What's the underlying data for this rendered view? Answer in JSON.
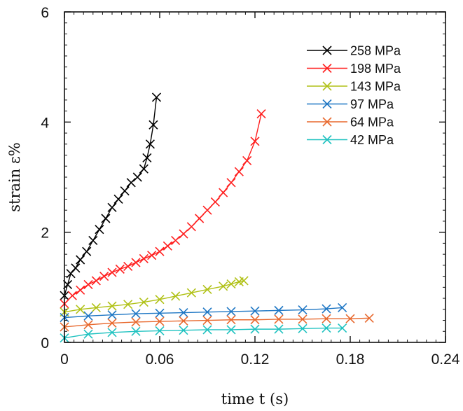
{
  "chart_data": {
    "type": "line",
    "title": "",
    "xlabel": "time t (s)",
    "ylabel": "strain ε%",
    "xlim": [
      0,
      0.24
    ],
    "ylim": [
      0,
      6
    ],
    "xticks": [
      0,
      0.06,
      0.12,
      0.18,
      0.24
    ],
    "xtick_labels": [
      "0",
      "0.06",
      "0.12",
      "0.18",
      "0.24"
    ],
    "yticks": [
      0,
      2,
      4,
      6
    ],
    "ytick_labels": [
      "0",
      "2",
      "4",
      "6"
    ],
    "grid": false,
    "legend": "top-right",
    "marker": "x",
    "series": [
      {
        "name": "258 MPa",
        "color": "#000000",
        "x": [
          0,
          0.002,
          0.004,
          0.007,
          0.01,
          0.014,
          0.018,
          0.022,
          0.026,
          0.03,
          0.034,
          0.038,
          0.042,
          0.046,
          0.05,
          0.052,
          0.054,
          0.056,
          0.058
        ],
        "y": [
          0.85,
          1.05,
          1.25,
          1.35,
          1.5,
          1.65,
          1.85,
          2.05,
          2.25,
          2.45,
          2.6,
          2.75,
          2.9,
          3.0,
          3.15,
          3.35,
          3.6,
          3.95,
          4.45
        ]
      },
      {
        "name": "198 MPa",
        "color": "#ff1f1f",
        "x": [
          0,
          0.005,
          0.01,
          0.015,
          0.02,
          0.025,
          0.03,
          0.035,
          0.04,
          0.045,
          0.05,
          0.055,
          0.06,
          0.065,
          0.07,
          0.075,
          0.08,
          0.085,
          0.09,
          0.095,
          0.1,
          0.105,
          0.11,
          0.115,
          0.12,
          0.124
        ],
        "y": [
          0.7,
          0.85,
          0.95,
          1.05,
          1.12,
          1.2,
          1.27,
          1.33,
          1.38,
          1.45,
          1.52,
          1.58,
          1.65,
          1.75,
          1.85,
          1.97,
          2.1,
          2.25,
          2.4,
          2.55,
          2.72,
          2.9,
          3.1,
          3.3,
          3.65,
          4.15
        ]
      },
      {
        "name": "143 MPa",
        "color": "#b0c116",
        "x": [
          0,
          0.01,
          0.02,
          0.03,
          0.04,
          0.05,
          0.06,
          0.07,
          0.08,
          0.09,
          0.1,
          0.105,
          0.11,
          0.113
        ],
        "y": [
          0.55,
          0.6,
          0.63,
          0.66,
          0.69,
          0.73,
          0.78,
          0.84,
          0.9,
          0.96,
          1.02,
          1.06,
          1.1,
          1.12
        ]
      },
      {
        "name": "97 MPa",
        "color": "#1f77c4",
        "x": [
          0,
          0.015,
          0.03,
          0.045,
          0.06,
          0.075,
          0.09,
          0.105,
          0.12,
          0.135,
          0.15,
          0.165,
          0.175
        ],
        "y": [
          0.45,
          0.48,
          0.5,
          0.52,
          0.53,
          0.54,
          0.55,
          0.56,
          0.57,
          0.58,
          0.59,
          0.61,
          0.63
        ]
      },
      {
        "name": "64 MPa",
        "color": "#e8692e",
        "x": [
          0,
          0.015,
          0.03,
          0.045,
          0.06,
          0.075,
          0.09,
          0.105,
          0.12,
          0.135,
          0.15,
          0.165,
          0.18,
          0.192
        ],
        "y": [
          0.28,
          0.32,
          0.35,
          0.37,
          0.38,
          0.39,
          0.4,
          0.41,
          0.41,
          0.42,
          0.42,
          0.43,
          0.43,
          0.44
        ]
      },
      {
        "name": "42 MPa",
        "color": "#1fc2c0",
        "x": [
          0,
          0.015,
          0.03,
          0.045,
          0.06,
          0.075,
          0.09,
          0.105,
          0.12,
          0.135,
          0.15,
          0.165,
          0.175
        ],
        "y": [
          0.08,
          0.15,
          0.18,
          0.2,
          0.21,
          0.22,
          0.23,
          0.23,
          0.24,
          0.24,
          0.25,
          0.26,
          0.26
        ]
      }
    ]
  }
}
